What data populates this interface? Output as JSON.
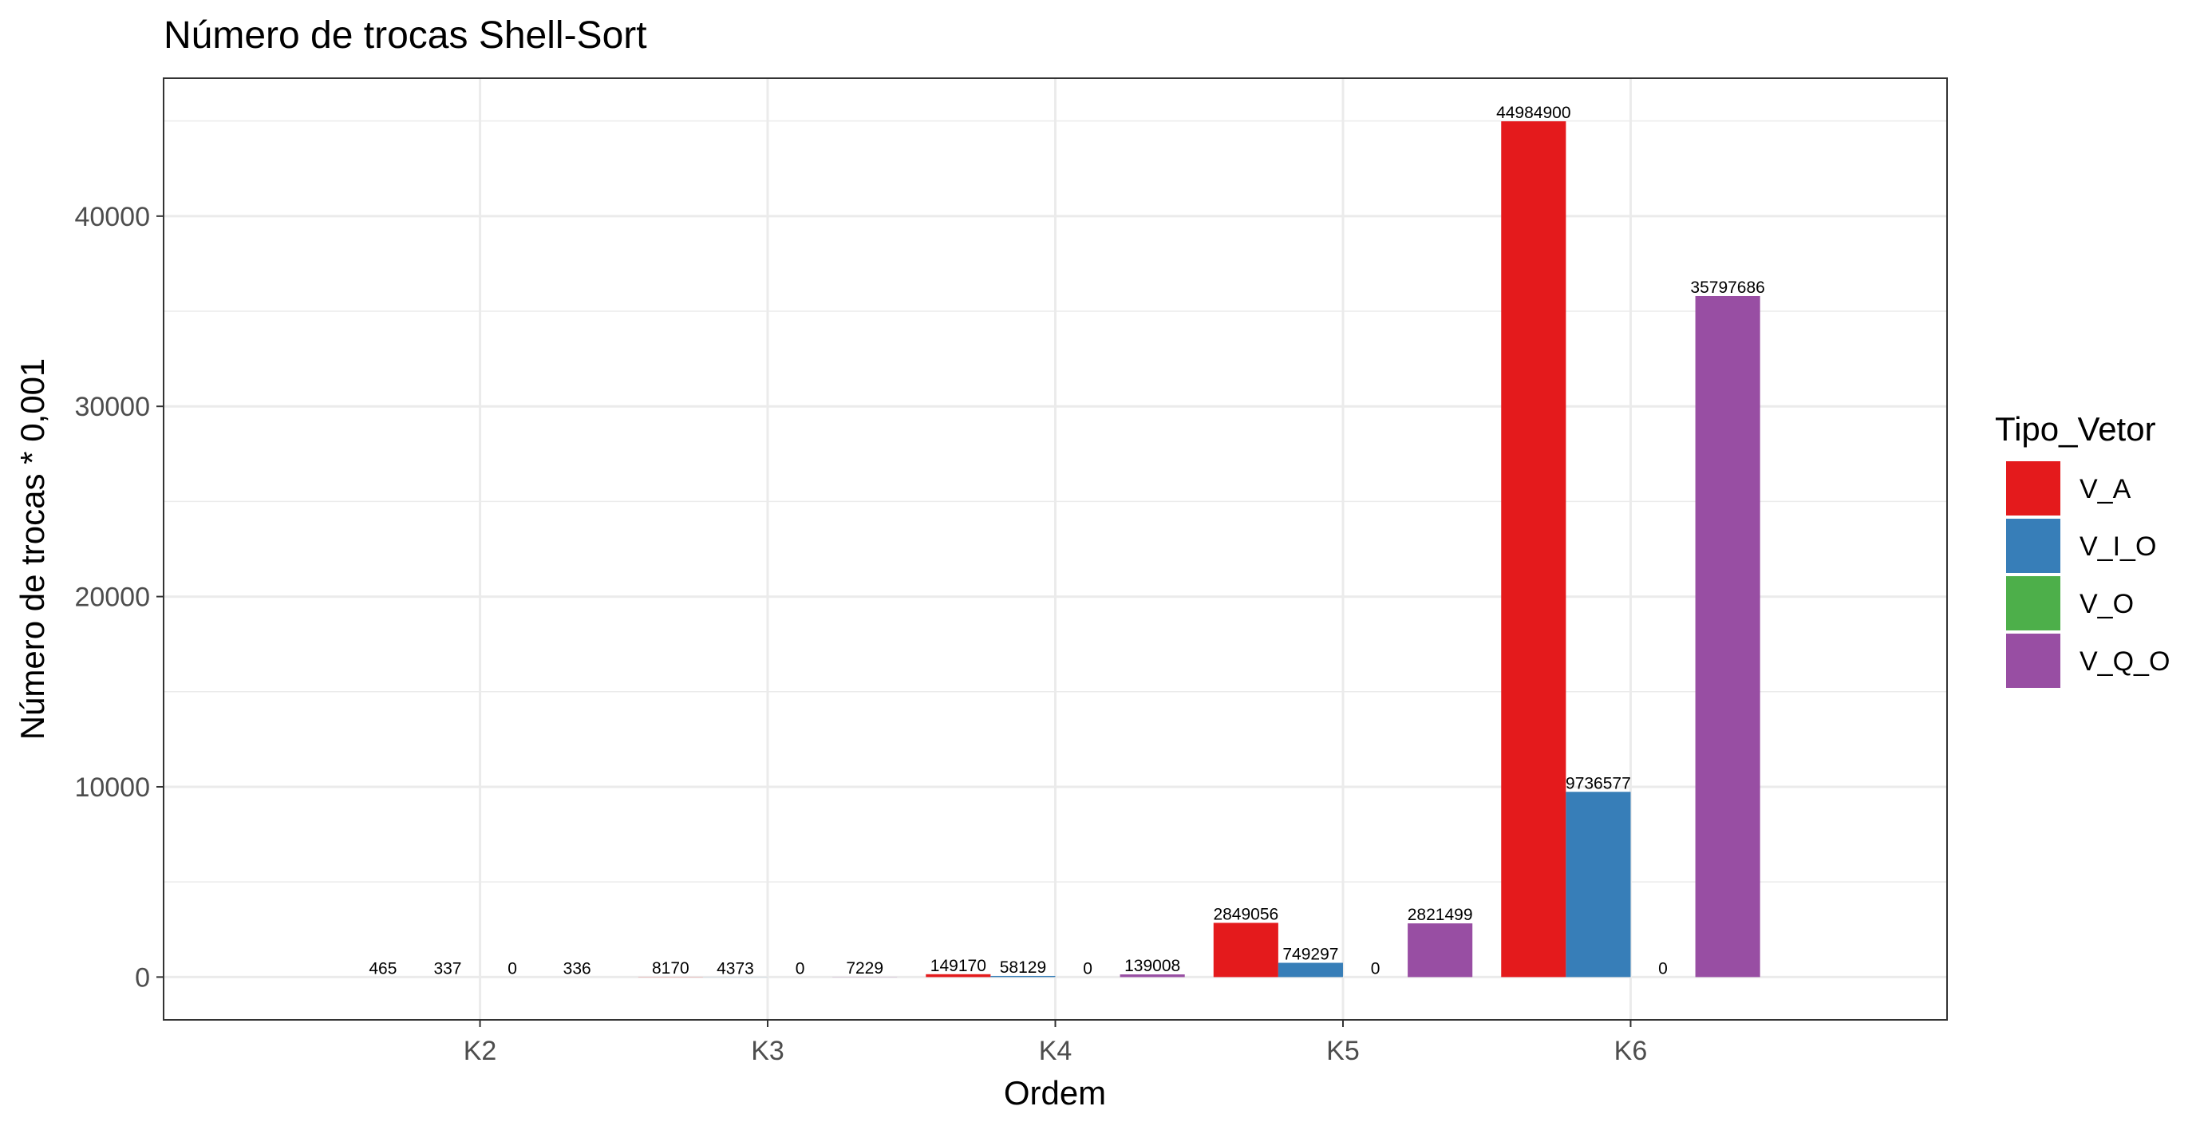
{
  "chart_data": {
    "type": "bar",
    "title": "Número de trocas Shell-Sort",
    "xlabel": "Ordem",
    "ylabel": "Número de trocas * 0,001",
    "categories": [
      "K2",
      "K3",
      "K4",
      "K5",
      "K6"
    ],
    "ylim": [
      -2250,
      47250
    ],
    "y_ticks": [
      0,
      10000,
      20000,
      30000,
      40000
    ],
    "grid": true,
    "legend_title": "Tipo_Vetor",
    "legend_position": "right",
    "series": [
      {
        "name": "V_A",
        "color": "#E41A1C",
        "values": [
          0.465,
          8.17,
          149.17,
          2849.056,
          44984.9
        ],
        "labels": [
          "465",
          "8170",
          "149170",
          "2849056",
          "44984900"
        ]
      },
      {
        "name": "V_I_O",
        "color": "#377EB8",
        "values": [
          0.337,
          4.373,
          58.129,
          749.297,
          9736.577
        ],
        "labels": [
          "337",
          "4373",
          "58129",
          "749297",
          "9736577"
        ]
      },
      {
        "name": "V_O",
        "color": "#4DAF4A",
        "values": [
          0,
          0,
          0,
          0,
          0
        ],
        "labels": [
          "0",
          "0",
          "0",
          "0",
          "0"
        ]
      },
      {
        "name": "V_Q_O",
        "color": "#984EA3",
        "values": [
          0.336,
          7.229,
          139.008,
          2821.499,
          35797.686
        ],
        "labels": [
          "336",
          "7229",
          "139008",
          "2821499",
          "35797686"
        ]
      }
    ]
  }
}
